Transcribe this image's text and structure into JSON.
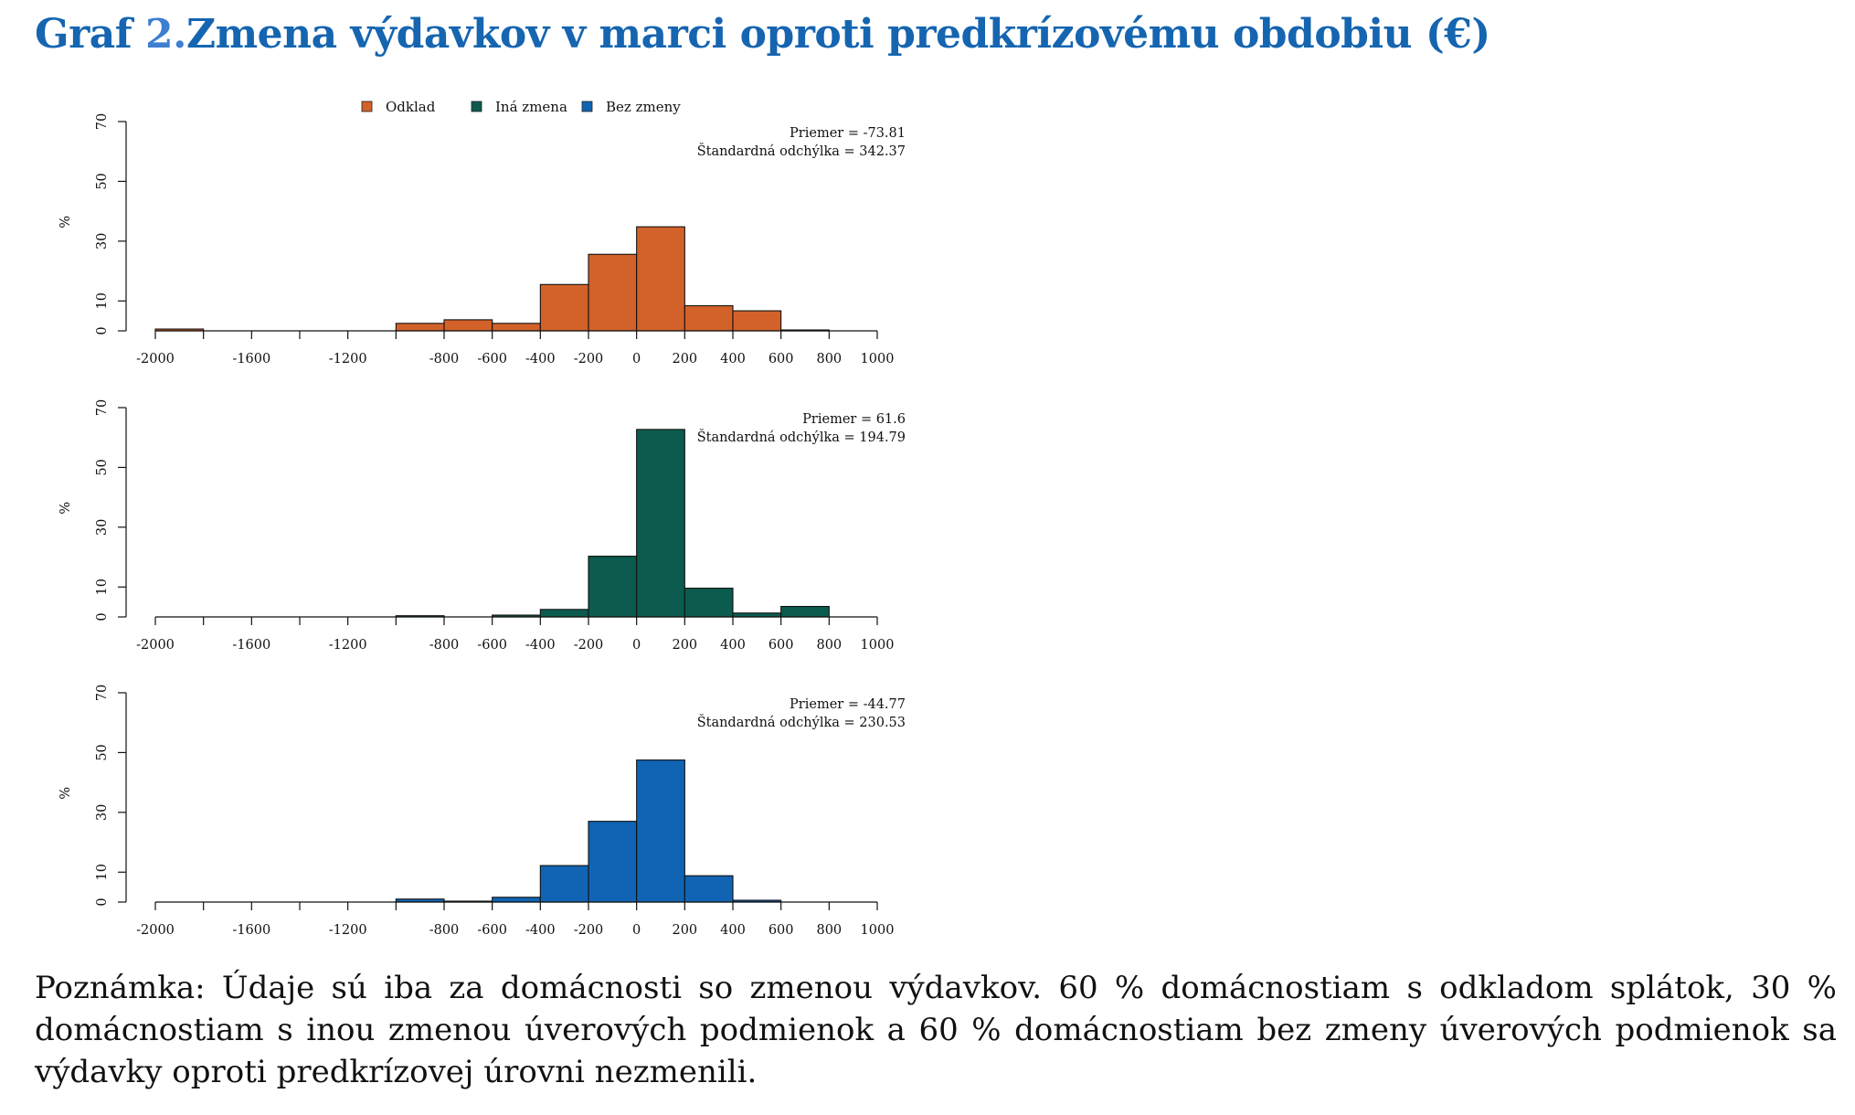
{
  "title": {
    "prefix": "Graf ",
    "number": "2.",
    "text": "Zmena výdavkov v marci oproti predkrízovému obdobiu (€)"
  },
  "legend": [
    {
      "label": "Odklad",
      "color": "#d2622a"
    },
    {
      "label": "Iná zmena",
      "color": "#0b5c4e"
    },
    {
      "label": "Bez zmeny",
      "color": "#1064b3"
    }
  ],
  "chart_data": [
    {
      "type": "bar",
      "series": "Odklad",
      "color": "#d2622a",
      "ylabel": "%",
      "ylim": [
        0,
        70
      ],
      "yticks": [
        0,
        10,
        30,
        50,
        70
      ],
      "xlim": [
        -2000,
        1000
      ],
      "xticks": [
        -2000,
        -1600,
        -1200,
        -800,
        -600,
        -400,
        -200,
        0,
        200,
        400,
        600,
        800,
        1000
      ],
      "bins": [
        {
          "from": -2000,
          "to": -1800,
          "value": 0.6
        },
        {
          "from": -1000,
          "to": -800,
          "value": 2.5
        },
        {
          "from": -800,
          "to": -600,
          "value": 3.7
        },
        {
          "from": -600,
          "to": -400,
          "value": 2.5
        },
        {
          "from": -400,
          "to": -200,
          "value": 15.5
        },
        {
          "from": -200,
          "to": 0,
          "value": 25.6
        },
        {
          "from": 0,
          "to": 200,
          "value": 34.8
        },
        {
          "from": 200,
          "to": 400,
          "value": 8.4
        },
        {
          "from": 400,
          "to": 600,
          "value": 6.7
        },
        {
          "from": 600,
          "to": 800,
          "value": 0.3
        }
      ],
      "stat_mean": "Priemer = -73.81",
      "stat_sd": "Štandardná odchýlka = 342.37"
    },
    {
      "type": "bar",
      "series": "Iná zmena",
      "color": "#0b5c4e",
      "ylabel": "%",
      "ylim": [
        0,
        70
      ],
      "yticks": [
        0,
        10,
        30,
        50,
        70
      ],
      "xlim": [
        -2000,
        1000
      ],
      "xticks": [
        -2000,
        -1600,
        -1200,
        -800,
        -600,
        -400,
        -200,
        0,
        200,
        400,
        600,
        800,
        1000
      ],
      "bins": [
        {
          "from": -1000,
          "to": -800,
          "value": 0.4
        },
        {
          "from": -600,
          "to": -400,
          "value": 0.6
        },
        {
          "from": -400,
          "to": -200,
          "value": 2.5
        },
        {
          "from": -200,
          "to": 0,
          "value": 20.3
        },
        {
          "from": 0,
          "to": 200,
          "value": 62.7
        },
        {
          "from": 200,
          "to": 400,
          "value": 9.6
        },
        {
          "from": 400,
          "to": 600,
          "value": 1.3
        },
        {
          "from": 600,
          "to": 800,
          "value": 3.5
        }
      ],
      "stat_mean": "Priemer = 61.6",
      "stat_sd": "Štandardná odchýlka = 194.79"
    },
    {
      "type": "bar",
      "series": "Bez zmeny",
      "color": "#1064b3",
      "ylabel": "%",
      "ylim": [
        0,
        70
      ],
      "yticks": [
        0,
        10,
        30,
        50,
        70
      ],
      "xlim": [
        -2000,
        1000
      ],
      "xticks": [
        -2000,
        -1600,
        -1200,
        -800,
        -600,
        -400,
        -200,
        0,
        200,
        400,
        600,
        800,
        1000
      ],
      "bins": [
        {
          "from": -1000,
          "to": -800,
          "value": 1.0
        },
        {
          "from": -800,
          "to": -600,
          "value": 0.3
        },
        {
          "from": -600,
          "to": -400,
          "value": 1.6
        },
        {
          "from": -400,
          "to": -200,
          "value": 12.2
        },
        {
          "from": -200,
          "to": 0,
          "value": 27.0
        },
        {
          "from": 0,
          "to": 200,
          "value": 47.5
        },
        {
          "from": 200,
          "to": 400,
          "value": 8.8
        },
        {
          "from": 400,
          "to": 600,
          "value": 0.6
        }
      ],
      "stat_mean": "Priemer = -44.77",
      "stat_sd": "Štandardná odchýlka = 230.53"
    }
  ],
  "note": "Poznámka: Údaje sú iba za domácnosti so zmenou výdavkov. 60 % domácnostiam s odkladom splátok, 30 % domácnostiam s inou zmenou úverových podmienok a 60 % domácnostiam bez zmeny úverových podmienok sa výdavky oproti predkrízovej úrovni nezmenili."
}
